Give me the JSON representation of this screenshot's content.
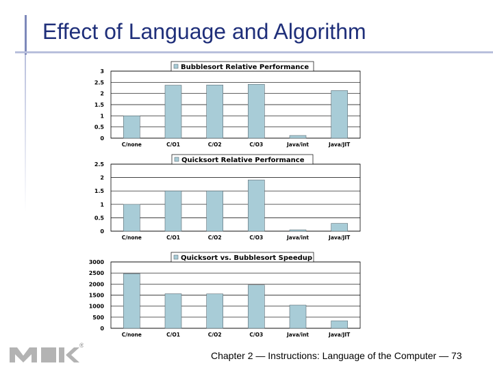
{
  "slide": {
    "title": "Effect of Language and Algorithm",
    "footer": "Chapter 2 — Instructions: Language of the Computer — 73",
    "logo_mark": "®",
    "logo_icon": "mk-logo-icon",
    "colors": {
      "title": "#1f2f7a",
      "accent": "#7d88ba",
      "bar": "#a8ccd7",
      "bar_stroke": "#5a6a72"
    }
  },
  "chart_data": [
    {
      "type": "bar",
      "title": "Bubblesort Relative Performance",
      "categories": [
        "C/none",
        "C/O1",
        "C/O2",
        "C/O3",
        "Java/int",
        "Java/JIT"
      ],
      "series": [
        {
          "values": [
            1.0,
            2.37,
            2.38,
            2.41,
            0.12,
            2.13
          ]
        }
      ],
      "yticks": [
        "0",
        "0.5",
        "1",
        "1.5",
        "2",
        "2.5",
        "3"
      ],
      "ylim": [
        0,
        3
      ],
      "grid": true,
      "legend": "top-center"
    },
    {
      "type": "bar",
      "title": "Quicksort Relative Performance",
      "categories": [
        "C/none",
        "C/O1",
        "C/O2",
        "C/O3",
        "Java/int",
        "Java/JIT"
      ],
      "series": [
        {
          "values": [
            1.0,
            1.5,
            1.5,
            1.91,
            0.05,
            0.29
          ]
        }
      ],
      "yticks": [
        "0",
        "0.5",
        "1",
        "1.5",
        "2",
        "2.5"
      ],
      "ylim": [
        0,
        2.5
      ],
      "grid": true,
      "legend": "top-center"
    },
    {
      "type": "bar",
      "title": "Quicksort vs. Bubblesort Speedup",
      "categories": [
        "C/none",
        "C/O1",
        "C/O2",
        "C/O3",
        "Java/int",
        "Java/JIT"
      ],
      "series": [
        {
          "values": [
            2468,
            1562,
            1555,
            1955,
            1050,
            338
          ]
        }
      ],
      "yticks": [
        "0",
        "500",
        "1000",
        "1500",
        "2000",
        "2500",
        "3000"
      ],
      "ylim": [
        0,
        3000
      ],
      "grid": true,
      "legend": "top-center"
    }
  ]
}
